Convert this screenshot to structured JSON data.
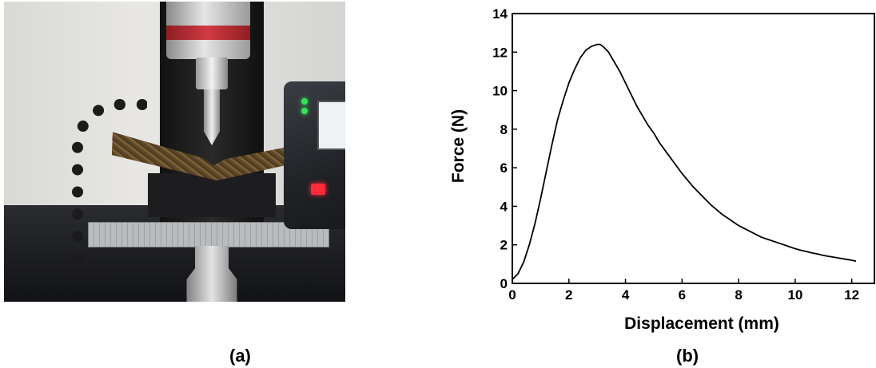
{
  "panels": {
    "a_label": "(a)",
    "b_label": "(b)"
  },
  "chart_data": {
    "type": "line",
    "title": "",
    "xlabel": "Displacement (mm)",
    "ylabel": "Force (N)",
    "xlim": [
      0,
      12.8
    ],
    "ylim": [
      0,
      14
    ],
    "xticks": [
      0,
      2,
      4,
      6,
      8,
      10,
      12
    ],
    "yticks": [
      0,
      2,
      4,
      6,
      8,
      10,
      12,
      14
    ],
    "grid": false,
    "series": [
      {
        "color": "#000000",
        "x": [
          0,
          0.2,
          0.4,
          0.6,
          0.8,
          1.0,
          1.2,
          1.4,
          1.6,
          1.8,
          2.0,
          2.2,
          2.4,
          2.6,
          2.8,
          3.0,
          3.1,
          3.2,
          3.4,
          3.6,
          3.8,
          4.0,
          4.2,
          4.4,
          4.6,
          4.8,
          5.0,
          5.2,
          5.4,
          5.6,
          5.8,
          6.0,
          6.2,
          6.4,
          6.6,
          6.8,
          7.0,
          7.2,
          7.4,
          7.6,
          7.8,
          8.0,
          8.2,
          8.4,
          8.6,
          8.8,
          9.0,
          9.2,
          9.4,
          9.6,
          9.8,
          10.0,
          10.2,
          10.4,
          10.6,
          10.8,
          11.0,
          11.2,
          11.4,
          11.6,
          11.8,
          12.0,
          12.15
        ],
        "y": [
          0.2,
          0.5,
          1.1,
          2.0,
          3.1,
          4.4,
          5.8,
          7.2,
          8.5,
          9.5,
          10.4,
          11.1,
          11.7,
          12.1,
          12.3,
          12.4,
          12.4,
          12.3,
          12.0,
          11.5,
          11.0,
          10.4,
          9.8,
          9.2,
          8.7,
          8.2,
          7.8,
          7.3,
          6.9,
          6.5,
          6.1,
          5.7,
          5.35,
          5.0,
          4.7,
          4.4,
          4.1,
          3.85,
          3.6,
          3.4,
          3.2,
          3.0,
          2.85,
          2.7,
          2.55,
          2.4,
          2.3,
          2.2,
          2.1,
          2.0,
          1.9,
          1.8,
          1.72,
          1.65,
          1.58,
          1.52,
          1.45,
          1.4,
          1.35,
          1.3,
          1.25,
          1.2,
          1.15
        ]
      }
    ]
  }
}
